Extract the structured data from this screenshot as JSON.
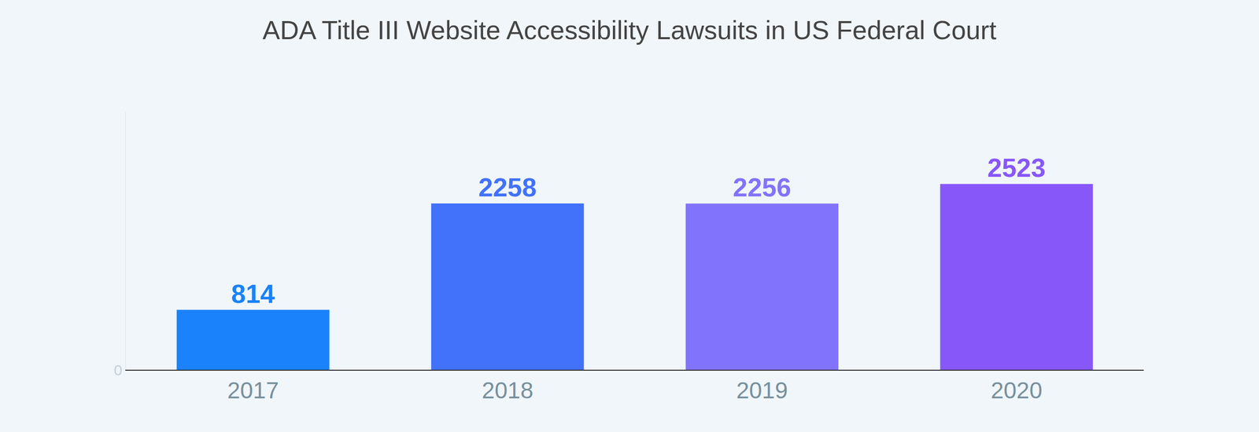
{
  "chart_data": {
    "type": "bar",
    "title": "ADA Title III Website Accessibility Lawsuits in US Federal Court",
    "categories": [
      "2017",
      "2018",
      "2019",
      "2020"
    ],
    "values": [
      814,
      2258,
      2256,
      2523
    ],
    "colors": [
      "#1a82fa",
      "#4272fa",
      "#8273fc",
      "#8857fa"
    ],
    "ylim": [
      0,
      3500
    ],
    "yticks": [
      0
    ],
    "grid": false,
    "data_labels": true
  }
}
